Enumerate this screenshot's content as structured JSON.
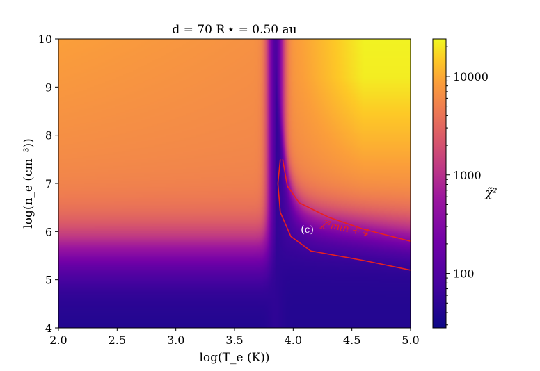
{
  "chart_data": {
    "type": "heatmap",
    "title": "d = 70 R ⋆ = 0.50 au",
    "xlabel": "log(T_e (K))",
    "ylabel": "log(n_e (cm⁻³))",
    "xlim": [
      2.0,
      5.0
    ],
    "ylim": [
      4,
      10
    ],
    "x_ticks": [
      "2.0",
      "2.5",
      "3.0",
      "3.5",
      "4.0",
      "4.5",
      "5.0"
    ],
    "y_ticks": [
      "4",
      "5",
      "6",
      "7",
      "8",
      "9",
      "10"
    ],
    "colorbar": {
      "label": "χ̃²",
      "scale": "log",
      "range": [
        28,
        24000
      ],
      "ticks": [
        "100",
        "1000",
        "10000"
      ],
      "colormap": "plasma"
    },
    "contour": {
      "label": "χ̃²min + 4",
      "color": "#e8211f",
      "upper_branch": [
        [
          3.91,
          7.5
        ],
        [
          3.95,
          6.95
        ],
        [
          4.05,
          6.6
        ],
        [
          4.3,
          6.3
        ],
        [
          4.6,
          6.05
        ],
        [
          5.0,
          5.8
        ]
      ],
      "lower_branch": [
        [
          3.89,
          7.5
        ],
        [
          3.87,
          7.0
        ],
        [
          3.89,
          6.4
        ],
        [
          3.98,
          5.9
        ],
        [
          4.15,
          5.6
        ],
        [
          4.6,
          5.4
        ],
        [
          5.0,
          5.2
        ]
      ]
    },
    "annotations": [
      {
        "text": "(c)",
        "x": 4.12,
        "y": 6.05,
        "color": "#ffffff"
      }
    ]
  }
}
